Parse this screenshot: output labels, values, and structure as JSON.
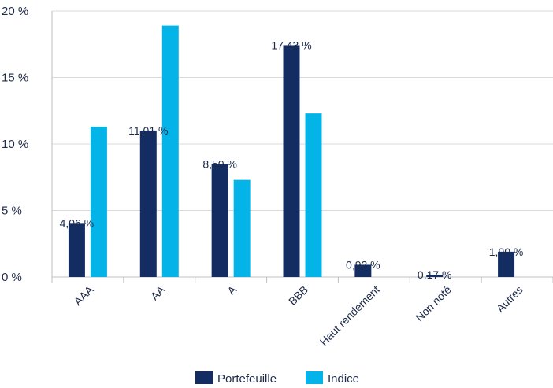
{
  "chart_data": {
    "type": "bar",
    "categories": [
      "AAA",
      "AA",
      "A",
      "BBB",
      "Haut rendement",
      "Non noté",
      "Autres"
    ],
    "series": [
      {
        "name": "Portefeuille",
        "color": "#132d63",
        "values": [
          4.06,
          11.01,
          8.5,
          17.43,
          0.92,
          0.17,
          1.9
        ],
        "labels": [
          "4,06 %",
          "11,01 %",
          "8,50 %",
          "17,43 %",
          "0,92 %",
          "0,17 %",
          "1,90 %"
        ]
      },
      {
        "name": "Indice",
        "color": "#04b4e8",
        "values": [
          11.3,
          18.9,
          7.3,
          12.3,
          null,
          null,
          null
        ]
      }
    ],
    "yticks": [
      "0 %",
      "5 %",
      "10 %",
      "15 %",
      "20 %"
    ],
    "ytick_values": [
      0,
      5,
      10,
      15,
      20
    ],
    "ylim": [
      0,
      20
    ],
    "grid": true,
    "legend": "bottom-center"
  }
}
